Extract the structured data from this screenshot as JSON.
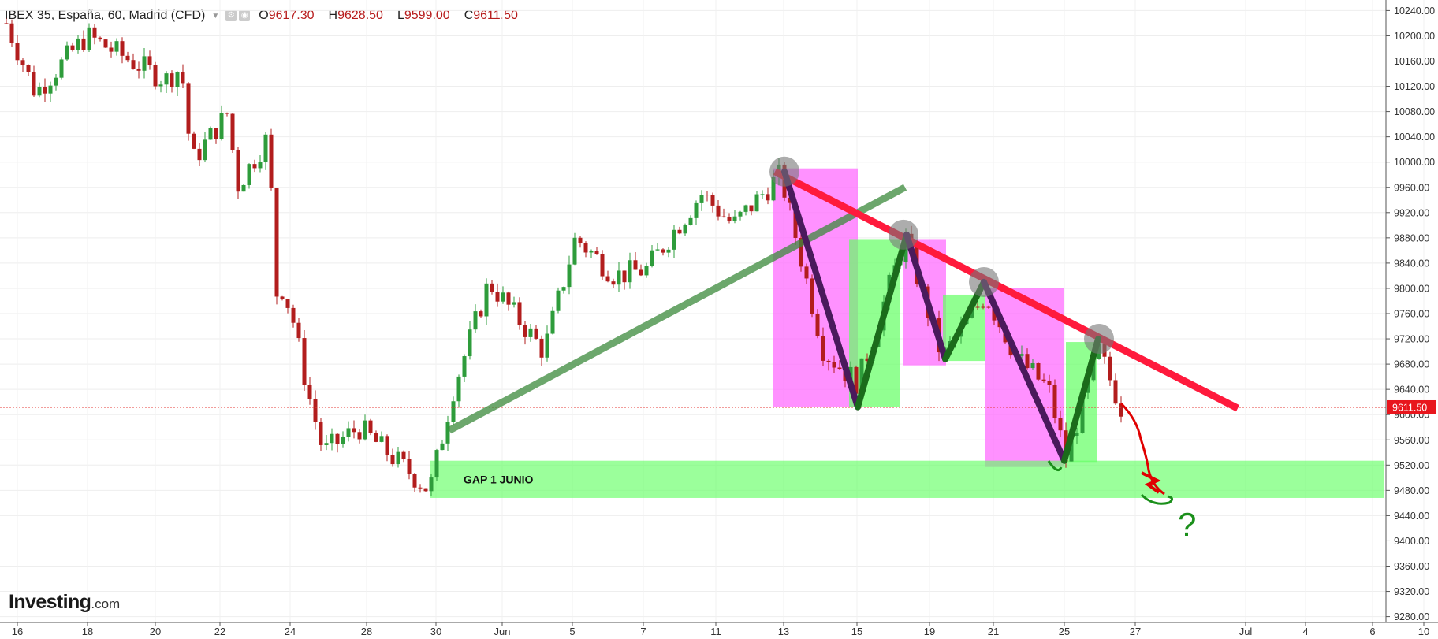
{
  "header": {
    "symbol": "IBEX 35, España, 60, Madrid (CFD)",
    "ohlc": [
      {
        "key": "O",
        "value": "9617.30"
      },
      {
        "key": "H",
        "value": "9628.50"
      },
      {
        "key": "L",
        "value": "9599.00"
      },
      {
        "key": "C",
        "value": "9611.50"
      }
    ]
  },
  "branding": {
    "logo_main": "Investing",
    "logo_domain": ".com"
  },
  "colors": {
    "up": "#2e9c3b",
    "down": "#b21d1d",
    "price_line": "#e53935",
    "magenta_zone": "#ff66ff",
    "green_zone": "#66ff66",
    "resistance": "#ff1a3c",
    "support": "#3b8a3b",
    "zigzag_down": "#4a1a5c",
    "zigzag_up": "#1b6b1b"
  },
  "chart_data": {
    "type": "candlestick",
    "instrument": "IBEX 35, España, 60, Madrid (CFD)",
    "timeframe": "60",
    "ylim": [
      9260,
      10250
    ],
    "y_ticks": [
      "10240.00",
      "10200.00",
      "10160.00",
      "10120.00",
      "10080.00",
      "10040.00",
      "10000.00",
      "9960.00",
      "9920.00",
      "9880.00",
      "9840.00",
      "9800.00",
      "9760.00",
      "9720.00",
      "9680.00",
      "9640.00",
      "9600.00",
      "9560.00",
      "9520.00",
      "9480.00",
      "9440.00",
      "9400.00",
      "9360.00",
      "9320.00",
      "9280.00"
    ],
    "x_ticks": [
      "16",
      "18",
      "20",
      "22",
      "24",
      "28",
      "30",
      "Jun",
      "5",
      "7",
      "11",
      "13",
      "15",
      "19",
      "21",
      "25",
      "27",
      "Jul",
      "4",
      "6",
      "10"
    ],
    "current_price": "9611.50",
    "last_ohlc": {
      "open": 9617.3,
      "high": 9628.5,
      "low": 9599.0,
      "close": 9611.5
    },
    "path_points": [
      {
        "x": "16",
        "y": 10220
      },
      {
        "x": "18",
        "y": 10110
      },
      {
        "x": "20",
        "y": 10200
      },
      {
        "x": "22",
        "y": 10130
      },
      {
        "x": "22.5",
        "y": 10150
      },
      {
        "x": "23",
        "y": 10000
      },
      {
        "x": "24",
        "y": 10080
      },
      {
        "x": "25",
        "y": 9960
      },
      {
        "x": "26",
        "y": 10040
      },
      {
        "x": "27",
        "y": 9770
      },
      {
        "x": "28",
        "y": 9800
      },
      {
        "x": "29",
        "y": 9760
      },
      {
        "x": "29.5",
        "y": 9650
      },
      {
        "x": "30",
        "y": 9540
      },
      {
        "x": "31",
        "y": 9580
      },
      {
        "x": "Jun",
        "y": 9480
      },
      {
        "x": "2",
        "y": 9640
      },
      {
        "x": "5",
        "y": 9810
      },
      {
        "x": "6",
        "y": 9700
      },
      {
        "x": "7",
        "y": 9880
      },
      {
        "x": "8",
        "y": 9820
      },
      {
        "x": "11",
        "y": 9830
      },
      {
        "x": "12",
        "y": 9900
      },
      {
        "x": "13",
        "y": 9950
      },
      {
        "x": "14",
        "y": 9900
      },
      {
        "x": "15",
        "y": 9980
      },
      {
        "x": "18",
        "y": 9700
      },
      {
        "x": "19",
        "y": 9650
      },
      {
        "x": "20",
        "y": 9880
      },
      {
        "x": "21",
        "y": 9690
      },
      {
        "x": "22",
        "y": 9790
      },
      {
        "x": "25",
        "y": 9690
      },
      {
        "x": "26",
        "y": 9640
      },
      {
        "x": "27",
        "y": 9530
      },
      {
        "x": "27.5",
        "y": 9700
      },
      {
        "x": "28",
        "y": 9611.5
      }
    ],
    "zones": [
      {
        "type": "magenta",
        "x0": "15",
        "x1": "19",
        "y0": 9612,
        "y1": 9990
      },
      {
        "type": "green",
        "x0": "19",
        "x1": "20",
        "y0": 9612,
        "y1": 9878
      },
      {
        "type": "magenta",
        "x0": "20",
        "x1": "21",
        "y0": 9678,
        "y1": 9878
      },
      {
        "type": "green",
        "x0": "21",
        "x1": "22",
        "y0": 9685,
        "y1": 9790
      },
      {
        "type": "magenta",
        "x0": "22.5",
        "x1": "27",
        "y0": 9517,
        "y1": 9800
      },
      {
        "type": "green",
        "x0": "27",
        "x1": "27.5",
        "y0": 9525,
        "y1": 9715
      },
      {
        "type": "green",
        "label": "GAP 1 JUNIO",
        "x0": "Jun",
        "x1": "10",
        "y0": 9468,
        "y1": 9527
      }
    ],
    "trendlines": [
      {
        "kind": "support",
        "from": {
          "x": "1",
          "y": 9575
        },
        "to": {
          "x": "15",
          "y": 9960
        }
      },
      {
        "kind": "resistance",
        "from": {
          "x": "15",
          "y": 9985
        },
        "to": {
          "x": "4",
          "y": 9610
        }
      }
    ],
    "pivot_markers": [
      {
        "x": "15",
        "y": 9985
      },
      {
        "x": "20",
        "y": 9885
      },
      {
        "x": "22",
        "y": 9810
      },
      {
        "x": "27.5",
        "y": 9720
      }
    ],
    "zigzag": [
      {
        "x": "15",
        "y": 9985
      },
      {
        "x": "19",
        "y": 9612
      },
      {
        "x": "20",
        "y": 9885
      },
      {
        "x": "21",
        "y": 9688
      },
      {
        "x": "22",
        "y": 9810
      },
      {
        "x": "27",
        "y": 9527
      },
      {
        "x": "27.5",
        "y": 9720
      }
    ],
    "annotations": [
      {
        "text": "GAP 1 JUNIO"
      },
      {
        "text": "?"
      }
    ]
  }
}
